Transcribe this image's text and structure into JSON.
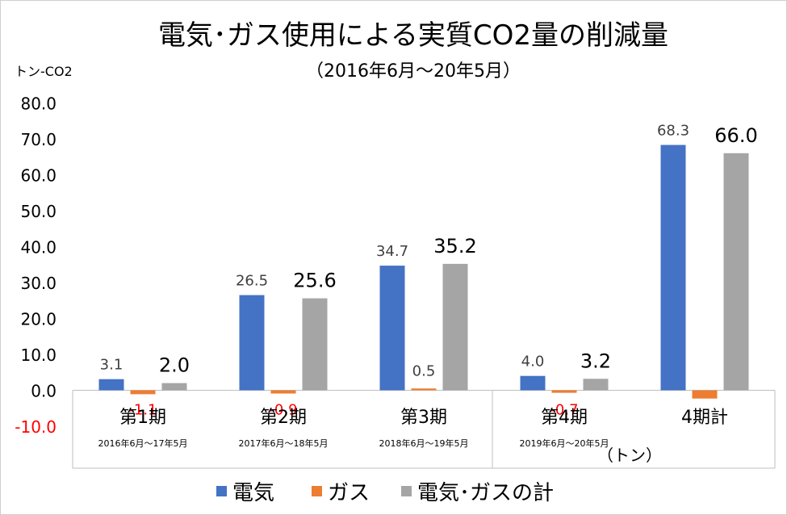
{
  "chart_data": {
    "type": "bar",
    "title": "電気･ガス使用による実質CO2量の削減量",
    "subtitle": "（2016年6月～20年5月）",
    "ylabel": "トン-CO2",
    "unit_note": "（トン）",
    "ylim": [
      -10,
      80
    ],
    "yticks": [
      "80.0",
      "70.0",
      "60.0",
      "50.0",
      "40.0",
      "30.0",
      "20.0",
      "10.0",
      "0.0",
      "-10.0"
    ],
    "categories": [
      "第1期",
      "第2期",
      "第3期",
      "第4期",
      "4期計"
    ],
    "category_subtitles": [
      "2016年6月～17年5月",
      "2017年6月～18年5月",
      "2018年6月～19年5月",
      "2019年6月～20年5月",
      ""
    ],
    "series": [
      {
        "name": "電気",
        "color": "#4472c4",
        "values": [
          3.1,
          26.5,
          34.7,
          4.0,
          68.3
        ],
        "labels": [
          "3.1",
          "26.5",
          "34.7",
          "4.0",
          "68.3"
        ]
      },
      {
        "name": "ガス",
        "color": "#ed7d31",
        "values": [
          -1.1,
          -0.9,
          0.5,
          -0.7,
          -2.3
        ],
        "labels": [
          "-1.1",
          "-0.9",
          "0.5",
          "-0.7",
          ""
        ]
      },
      {
        "name": "電気･ガスの計",
        "color": "#a5a5a5",
        "values": [
          2.0,
          25.6,
          35.2,
          3.2,
          66.0
        ],
        "labels": [
          "2.0",
          "25.6",
          "35.2",
          "3.2",
          "66.0"
        ]
      }
    ],
    "grid": false,
    "legend": "bottom"
  }
}
